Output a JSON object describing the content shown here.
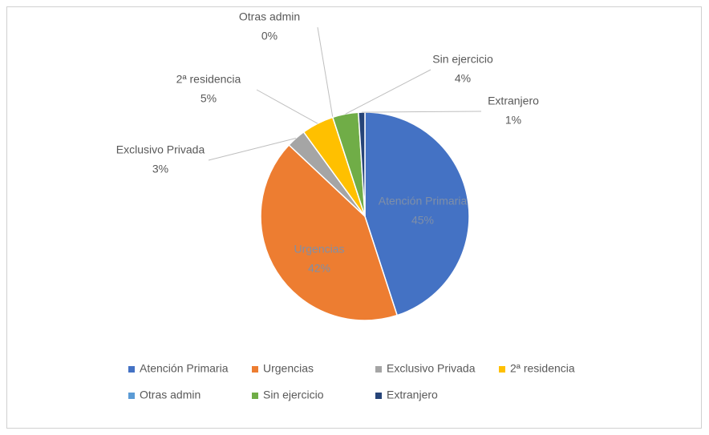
{
  "chart_data": {
    "type": "pie",
    "categories": [
      "Atención Primaria",
      "Urgencias",
      "Exclusivo Privada",
      "2ª residencia",
      "Otras admin",
      "Sin ejercicio",
      "Extranjero"
    ],
    "values": [
      45,
      42,
      3,
      5,
      0,
      4,
      1
    ],
    "value_labels": [
      "45%",
      "42%",
      "3%",
      "5%",
      "0%",
      "4%",
      "1%"
    ],
    "colors": [
      "#4472c4",
      "#ed7d31",
      "#a5a5a5",
      "#ffc000",
      "#5b9bd5",
      "#70ad47",
      "#264478"
    ],
    "legend": "bottom"
  }
}
